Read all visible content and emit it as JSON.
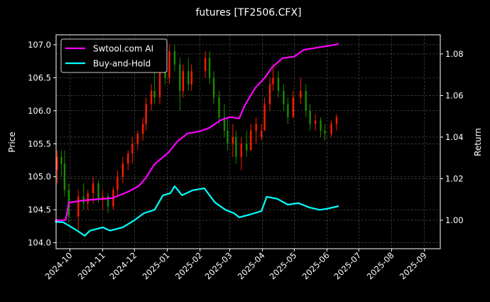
{
  "chart_data": {
    "type": "candlestick+line",
    "title": "futures [TF2506.CFX]",
    "ylabel_left": "Price",
    "ylabel_right": "Return",
    "xlim": [
      "2024-09-18",
      "2025-09-16"
    ],
    "ylim_left": [
      103.91,
      107.15
    ],
    "ylim_right": [
      0.9863,
      1.0892
    ],
    "grid": true,
    "legend_position": "upper-left",
    "x_ticks": [
      "2024-10",
      "2024-11",
      "2024-12",
      "2025-01",
      "2025-02",
      "2025-03",
      "2025-04",
      "2025-05",
      "2025-06",
      "2025-07",
      "2025-08",
      "2025-09"
    ],
    "y_ticks_left": [
      "104.0",
      "104.5",
      "105.0",
      "105.5",
      "106.0",
      "106.5",
      "107.0"
    ],
    "y_ticks_right": [
      "1.00",
      "1.02",
      "1.04",
      "1.06",
      "1.08"
    ],
    "colors": {
      "up": "#ff1a00",
      "down": "#1a8c00",
      "strategy": "#ff00ff",
      "buy_hold": "#00ffff",
      "background": "#000000",
      "grid": "#555555"
    },
    "candles": [
      [
        "2024-09-19",
        105.1,
        105.4,
        104.9,
        105.3
      ],
      [
        "2024-09-23",
        105.3,
        105.4,
        105.0,
        105.2
      ],
      [
        "2024-09-26",
        105.2,
        105.4,
        104.7,
        104.8
      ],
      [
        "2024-09-30",
        104.8,
        104.9,
        104.3,
        104.4
      ],
      [
        "2024-10-09",
        104.4,
        104.8,
        104.2,
        104.7
      ],
      [
        "2024-10-14",
        104.7,
        104.9,
        104.5,
        104.6
      ],
      [
        "2024-10-18",
        104.6,
        104.8,
        104.5,
        104.75
      ],
      [
        "2024-10-23",
        104.75,
        105.0,
        104.6,
        104.9
      ],
      [
        "2024-10-28",
        104.9,
        104.95,
        104.6,
        104.65
      ],
      [
        "2024-11-01",
        104.65,
        104.8,
        104.5,
        104.7
      ],
      [
        "2024-11-06",
        104.7,
        104.75,
        104.45,
        104.55
      ],
      [
        "2024-11-11",
        104.55,
        104.85,
        104.5,
        104.8
      ],
      [
        "2024-11-15",
        104.8,
        105.1,
        104.7,
        105.0
      ],
      [
        "2024-11-20",
        105.0,
        105.3,
        104.9,
        105.2
      ],
      [
        "2024-11-25",
        105.2,
        105.4,
        105.1,
        105.35
      ],
      [
        "2024-11-29",
        105.35,
        105.6,
        105.2,
        105.5
      ],
      [
        "2024-12-04",
        105.5,
        105.7,
        105.4,
        105.65
      ],
      [
        "2024-12-09",
        105.65,
        105.9,
        105.55,
        105.8
      ],
      [
        "2024-12-12",
        105.8,
        106.2,
        105.7,
        106.1
      ],
      [
        "2024-12-17",
        106.1,
        106.4,
        106.0,
        106.3
      ],
      [
        "2024-12-20",
        106.3,
        106.6,
        106.1,
        106.2
      ],
      [
        "2024-12-25",
        106.2,
        106.7,
        106.1,
        106.6
      ],
      [
        "2024-12-30",
        106.6,
        106.8,
        106.4,
        106.5
      ],
      [
        "2025-01-03",
        106.5,
        107.0,
        106.4,
        106.9
      ],
      [
        "2025-01-08",
        106.9,
        107.0,
        106.6,
        106.7
      ],
      [
        "2025-01-13",
        106.7,
        106.8,
        106.0,
        106.3
      ],
      [
        "2025-01-16",
        106.3,
        106.7,
        106.2,
        106.6
      ],
      [
        "2025-01-21",
        106.6,
        106.8,
        106.3,
        106.4
      ],
      [
        "2025-01-24",
        106.4,
        106.7,
        106.3,
        106.6
      ],
      [
        "2025-02-06",
        106.6,
        106.9,
        106.5,
        106.8
      ],
      [
        "2025-02-10",
        106.8,
        106.9,
        106.4,
        106.5
      ],
      [
        "2025-02-14",
        106.5,
        106.6,
        106.1,
        106.2
      ],
      [
        "2025-02-19",
        106.2,
        106.3,
        105.8,
        105.9
      ],
      [
        "2025-02-24",
        105.9,
        106.1,
        105.6,
        105.7
      ],
      [
        "2025-02-27",
        105.7,
        105.9,
        105.4,
        105.5
      ],
      [
        "2025-03-04",
        105.5,
        105.8,
        105.3,
        105.6
      ],
      [
        "2025-03-07",
        105.6,
        105.7,
        105.2,
        105.3
      ],
      [
        "2025-03-12",
        105.3,
        105.6,
        105.1,
        105.5
      ],
      [
        "2025-03-17",
        105.5,
        105.7,
        105.3,
        105.4
      ],
      [
        "2025-03-21",
        105.4,
        105.8,
        105.4,
        105.7
      ],
      [
        "2025-03-26",
        105.7,
        105.9,
        105.5,
        105.8
      ],
      [
        "2025-03-31",
        105.6,
        105.8,
        105.55,
        105.7
      ],
      [
        "2025-04-03",
        105.7,
        106.2,
        105.7,
        106.1
      ],
      [
        "2025-04-08",
        106.1,
        106.5,
        106.0,
        106.4
      ],
      [
        "2025-04-11",
        106.4,
        106.7,
        106.3,
        106.5
      ],
      [
        "2025-04-16",
        106.5,
        106.6,
        106.2,
        106.3
      ],
      [
        "2025-04-21",
        106.3,
        106.4,
        106.0,
        106.1
      ],
      [
        "2025-04-25",
        106.1,
        106.2,
        105.8,
        105.9
      ],
      [
        "2025-04-30",
        105.9,
        106.3,
        105.9,
        106.2
      ],
      [
        "2025-05-07",
        106.2,
        106.5,
        106.1,
        106.3
      ],
      [
        "2025-05-12",
        106.3,
        106.4,
        105.9,
        106.0
      ],
      [
        "2025-05-16",
        106.0,
        106.1,
        105.7,
        105.8
      ],
      [
        "2025-05-21",
        105.8,
        105.95,
        105.7,
        105.85
      ],
      [
        "2025-05-26",
        105.85,
        105.9,
        105.6,
        105.7
      ],
      [
        "2025-05-30",
        105.7,
        105.8,
        105.55,
        105.65
      ],
      [
        "2025-06-05",
        105.65,
        105.85,
        105.6,
        105.8
      ],
      [
        "2025-06-10",
        105.8,
        105.95,
        105.7,
        105.9
      ]
    ],
    "series": [
      {
        "name": "Swtool.com AI",
        "axis": "right",
        "x": [
          "2024-09-17",
          "2024-09-27",
          "2024-09-30",
          "2024-10-15",
          "2024-11-10",
          "2024-11-25",
          "2024-12-05",
          "2024-12-12",
          "2024-12-20",
          "2025-01-02",
          "2025-01-10",
          "2025-01-20",
          "2025-02-01",
          "2025-02-10",
          "2025-02-20",
          "2025-03-01",
          "2025-03-10",
          "2025-03-15",
          "2025-03-25",
          "2025-04-03",
          "2025-04-10",
          "2025-04-20",
          "2025-05-01",
          "2025-05-10",
          "2025-05-20",
          "2025-06-01",
          "2025-06-12"
        ],
        "values": [
          1.0,
          1.0,
          1.0085,
          1.0096,
          1.0106,
          1.0137,
          1.0164,
          1.0205,
          1.027,
          1.0325,
          1.0376,
          1.0417,
          1.0428,
          1.0445,
          1.048,
          1.0496,
          1.049,
          1.055,
          1.0636,
          1.0684,
          1.0735,
          1.078,
          1.0787,
          1.082,
          1.0828,
          1.0838,
          1.0848
        ]
      },
      {
        "name": "Buy-and-Hold",
        "axis": "right",
        "x": [
          "2024-09-17",
          "2024-09-25",
          "2024-10-08",
          "2024-10-15",
          "2024-10-20",
          "2024-11-01",
          "2024-11-08",
          "2024-11-20",
          "2024-12-01",
          "2024-12-10",
          "2024-12-20",
          "2024-12-28",
          "2025-01-04",
          "2025-01-08",
          "2025-01-15",
          "2025-01-25",
          "2025-02-05",
          "2025-02-15",
          "2025-02-25",
          "2025-03-05",
          "2025-03-10",
          "2025-03-20",
          "2025-03-31",
          "2025-04-05",
          "2025-04-15",
          "2025-04-25",
          "2025-05-05",
          "2025-05-15",
          "2025-05-25",
          "2025-06-01",
          "2025-06-12"
        ],
        "values": [
          0.9993,
          0.999,
          0.995,
          0.9925,
          0.995,
          0.9966,
          0.995,
          0.9966,
          1.0,
          1.0034,
          1.005,
          1.012,
          1.013,
          1.0164,
          1.012,
          1.0144,
          1.0154,
          1.0086,
          1.005,
          1.0034,
          1.0014,
          1.0027,
          1.0044,
          1.0113,
          1.0103,
          1.0075,
          1.0082,
          1.0062,
          1.005,
          1.0055,
          1.0068
        ]
      }
    ]
  }
}
